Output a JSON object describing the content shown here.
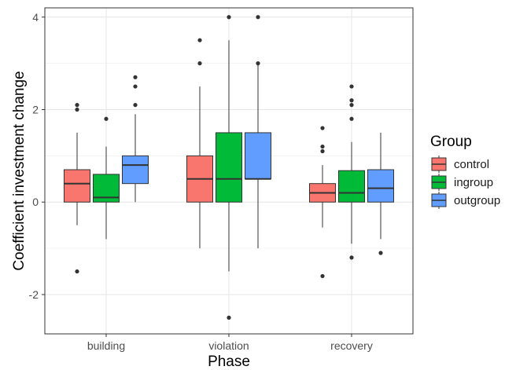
{
  "chart_data": {
    "type": "box",
    "xlabel": "Phase",
    "ylabel": "Coefficient investment change",
    "categories": [
      "building",
      "violation",
      "recovery"
    ],
    "ylim": [
      -2.85,
      4.2
    ],
    "yticks": [
      -2,
      0,
      2,
      4
    ],
    "grid": true,
    "legend": {
      "title": "Group",
      "position": "right",
      "entries": [
        "control",
        "ingroup",
        "outgroup"
      ]
    },
    "series": [
      {
        "name": "control",
        "color": "#F8766D",
        "boxes": [
          {
            "category": "building",
            "min": -0.5,
            "q1": 0.0,
            "median": 0.4,
            "q3": 0.7,
            "max": 1.5,
            "outliers": [
              2.0,
              2.1,
              -1.5
            ]
          },
          {
            "category": "violation",
            "min": -1.0,
            "q1": 0.0,
            "median": 0.5,
            "q3": 1.0,
            "max": 2.5,
            "outliers": [
              3.0,
              3.5
            ]
          },
          {
            "category": "recovery",
            "min": -0.55,
            "q1": 0.0,
            "median": 0.2,
            "q3": 0.4,
            "max": 0.8,
            "outliers": [
              1.1,
              1.2,
              1.6,
              -1.6
            ]
          }
        ]
      },
      {
        "name": "ingroup",
        "color": "#00BA38",
        "boxes": [
          {
            "category": "building",
            "min": -0.8,
            "q1": 0.0,
            "median": 0.1,
            "q3": 0.6,
            "max": 1.2,
            "outliers": [
              1.8
            ]
          },
          {
            "category": "violation",
            "min": -1.5,
            "q1": 0.0,
            "median": 0.5,
            "q3": 1.5,
            "max": 3.5,
            "outliers": [
              4.0,
              -2.5
            ]
          },
          {
            "category": "recovery",
            "min": -0.9,
            "q1": 0.0,
            "median": 0.2,
            "q3": 0.68,
            "max": 1.3,
            "outliers": [
              1.8,
              2.1,
              2.2,
              2.5,
              -1.2
            ]
          }
        ]
      },
      {
        "name": "outgroup",
        "color": "#619CFF",
        "boxes": [
          {
            "category": "building",
            "min": 0.0,
            "q1": 0.4,
            "median": 0.8,
            "q3": 1.0,
            "max": 1.9,
            "outliers": [
              2.1,
              2.5,
              2.7
            ]
          },
          {
            "category": "violation",
            "min": -1.0,
            "q1": 0.5,
            "median": 0.5,
            "q3": 1.5,
            "max": 3.0,
            "outliers": [
              3.0,
              4.0
            ]
          },
          {
            "category": "recovery",
            "min": -0.8,
            "q1": 0.0,
            "median": 0.3,
            "q3": 0.7,
            "max": 1.5,
            "outliers": [
              -1.1
            ]
          }
        ]
      }
    ]
  }
}
